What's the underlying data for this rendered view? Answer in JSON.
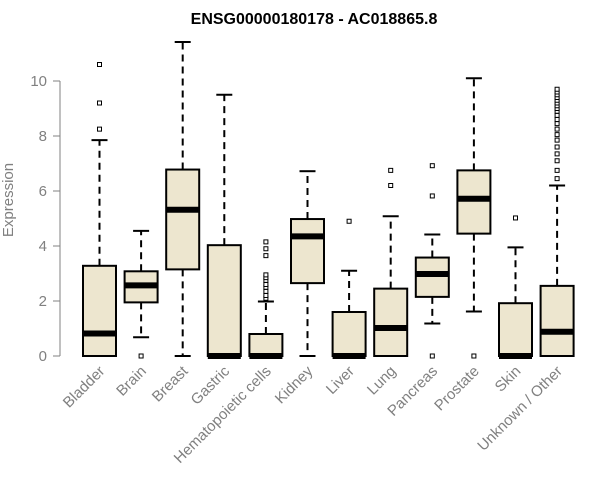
{
  "chart_data": {
    "type": "boxplot",
    "title": "ENSG00000180178 - AC018865.8",
    "xlabel": "",
    "ylabel": "Expression",
    "ylim": [
      0,
      11.5
    ],
    "y_ticks": [
      0,
      2,
      4,
      6,
      8,
      10
    ],
    "grid": false,
    "legend": "none",
    "box_fill": "#EDE6CF",
    "categories": [
      "Bladder",
      "Brain",
      "Breast",
      "Gastric",
      "Hematopoietic cells",
      "Kidney",
      "Liver",
      "Lung",
      "Pancreas",
      "Prostate",
      "Skin",
      "Unknown / Other"
    ],
    "boxes": [
      {
        "name": "Bladder",
        "min": 0,
        "q1": 0,
        "median": 0.82,
        "q3": 3.28,
        "max": 7.85,
        "outliers": [
          8.25,
          9.2,
          10.6
        ]
      },
      {
        "name": "Brain",
        "min": 0.68,
        "q1": 1.95,
        "median": 2.57,
        "q3": 3.08,
        "max": 4.55,
        "outliers": [
          0
        ]
      },
      {
        "name": "Breast",
        "min": 0,
        "q1": 3.15,
        "median": 5.32,
        "q3": 6.78,
        "max": 11.42,
        "outliers": []
      },
      {
        "name": "Gastric",
        "min": 0,
        "q1": 0,
        "median": 0,
        "q3": 4.03,
        "max": 9.5,
        "outliers": []
      },
      {
        "name": "Hematopoietic cells",
        "min": 0,
        "q1": 0,
        "median": 0,
        "q3": 0.8,
        "max": 1.98,
        "outliers": [
          2.1,
          2.2,
          2.35,
          2.5,
          2.6,
          2.75,
          2.85,
          2.95,
          3.65,
          3.9,
          4.15
        ]
      },
      {
        "name": "Kidney",
        "min": 0,
        "q1": 2.65,
        "median": 4.35,
        "q3": 4.98,
        "max": 6.72,
        "outliers": []
      },
      {
        "name": "Liver",
        "min": 0,
        "q1": 0,
        "median": 0,
        "q3": 1.6,
        "max": 3.1,
        "outliers": [
          4.9
        ]
      },
      {
        "name": "Lung",
        "min": 0,
        "q1": 0,
        "median": 1.02,
        "q3": 2.45,
        "max": 5.08,
        "outliers": [
          6.2,
          6.75
        ]
      },
      {
        "name": "Pancreas",
        "min": 1.18,
        "q1": 2.15,
        "median": 2.98,
        "q3": 3.58,
        "max": 4.42,
        "outliers": [
          0,
          5.82,
          6.92
        ]
      },
      {
        "name": "Prostate",
        "min": 1.62,
        "q1": 4.45,
        "median": 5.72,
        "q3": 6.75,
        "max": 10.1,
        "outliers": [
          0
        ]
      },
      {
        "name": "Skin",
        "min": 0,
        "q1": 0,
        "median": 0,
        "q3": 1.92,
        "max": 3.95,
        "outliers": [
          5.02
        ]
      },
      {
        "name": "Unknown / Other",
        "min": 0,
        "q1": 0,
        "median": 0.88,
        "q3": 2.55,
        "max": 6.2,
        "outliers": [
          6.45,
          6.75,
          7.1,
          7.35,
          7.6,
          7.85,
          8.05,
          8.25,
          8.45,
          8.6,
          8.75,
          8.9,
          9.0,
          9.1,
          9.2,
          9.3,
          9.4,
          9.5,
          9.6,
          9.7
        ]
      }
    ]
  }
}
